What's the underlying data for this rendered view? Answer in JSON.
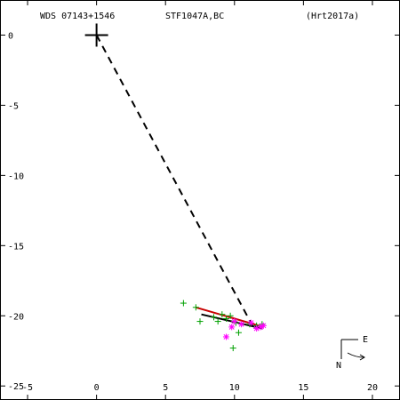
{
  "header": {
    "left": "WDS 07143+1546",
    "center": "STF1047A,BC",
    "right": "(Hrt2017a)"
  },
  "compass": {
    "east": "E",
    "north": "N"
  },
  "chart_data": {
    "type": "scatter",
    "title": "",
    "xlabel": "",
    "ylabel": "",
    "xlim": [
      -7,
      22
    ],
    "ylim": [
      -26,
      2.5
    ],
    "x_ticks": [
      -5,
      0,
      5,
      10,
      15,
      20
    ],
    "y_ticks": [
      0,
      -5,
      -10,
      -15,
      -20,
      -25
    ],
    "grid": false,
    "primary": {
      "x": 0,
      "y": 0,
      "marker": "plus",
      "color": "#000000"
    },
    "connector": {
      "from": [
        0,
        0
      ],
      "to": [
        11.3,
        -20.7
      ],
      "style": "dashed",
      "color": "#000000"
    },
    "orbit_segments": [
      {
        "from": [
          7.2,
          -19.4
        ],
        "to": [
          12.1,
          -20.8
        ],
        "color": "#c80000"
      },
      {
        "from": [
          7.6,
          -19.9
        ],
        "to": [
          12.0,
          -20.9
        ],
        "color": "#000000"
      }
    ],
    "series": [
      {
        "marker": "plus",
        "color": "#00a000",
        "points": [
          [
            6.3,
            -19.1
          ],
          [
            7.2,
            -19.4
          ],
          [
            7.5,
            -20.4
          ],
          [
            8.5,
            -20.1
          ],
          [
            8.8,
            -20.4
          ],
          [
            9.1,
            -19.9
          ],
          [
            9.4,
            -20.2
          ],
          [
            9.7,
            -20.0
          ],
          [
            10.1,
            -20.5
          ],
          [
            10.3,
            -21.2
          ],
          [
            9.9,
            -22.3
          ],
          [
            11.6,
            -20.7
          ],
          [
            12.0,
            -20.6
          ],
          [
            11.1,
            -20.6
          ]
        ]
      },
      {
        "marker": "asterisk",
        "color": "#ff00ff",
        "points": [
          [
            9.4,
            -21.5
          ],
          [
            9.8,
            -20.8
          ],
          [
            10.0,
            -20.4
          ],
          [
            10.5,
            -20.6
          ],
          [
            11.2,
            -20.5
          ],
          [
            11.6,
            -20.9
          ],
          [
            11.9,
            -20.8
          ],
          [
            12.1,
            -20.7
          ]
        ]
      }
    ]
  }
}
